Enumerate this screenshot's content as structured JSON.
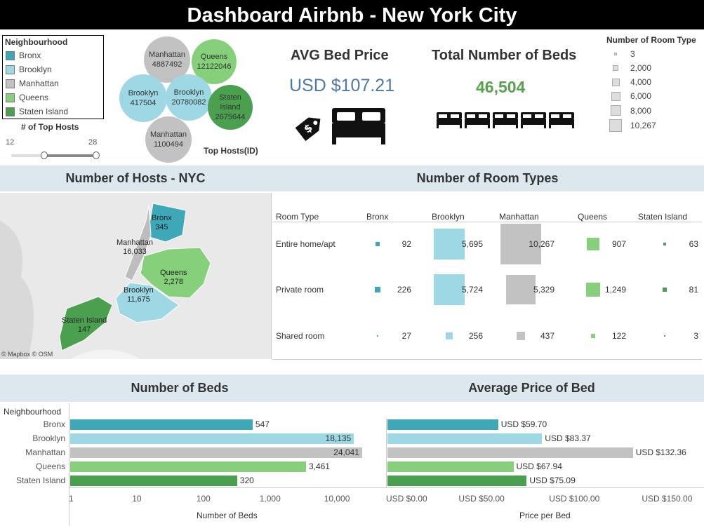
{
  "title": "Dashboard Airbnb - New York City",
  "colors": {
    "Bronx": "#3ea8b8",
    "Brooklyn": "#9dd8e4",
    "Manhattan": "#c2c2c2",
    "Queens": "#86d07b",
    "Staten Island": "#4ba04f",
    "header_bg": "#000000",
    "section_bg": "#dde8ee",
    "price_blue": "#4e79a7",
    "beds_green": "#59a14f"
  },
  "legend": {
    "title": "Neighbourhood",
    "items": [
      "Bronx",
      "Brooklyn",
      "Manhattan",
      "Queens",
      "Staten Island"
    ]
  },
  "slider": {
    "title": "# of Top Hosts",
    "min": "12",
    "max": "28",
    "low_fraction": 0.38,
    "high_fraction": 1.0
  },
  "top_hosts": {
    "label": "Top Hosts(ID)",
    "bubbles": [
      {
        "name": "Manhattan",
        "id": "4887492",
        "color_key": "Manhattan"
      },
      {
        "name": "Queens",
        "id": "12122046",
        "color_key": "Queens"
      },
      {
        "name": "Brooklyn",
        "id": "417504",
        "color_key": "Brooklyn"
      },
      {
        "name": "Brooklyn",
        "id": "20780082",
        "color_key": "Brooklyn"
      },
      {
        "name": "Staten Island",
        "id": "2675644",
        "color_key": "Staten Island"
      },
      {
        "name": "Manhattan",
        "id": "1100494",
        "color_key": "Manhattan"
      }
    ]
  },
  "kpi": {
    "avg_price_title": "AVG Bed Price",
    "avg_price_value": "USD $107.21",
    "total_beds_title": "Total Number of Beds",
    "total_beds_value": "46,504",
    "icons": [
      "price-tag-icon",
      "bed-icon"
    ]
  },
  "size_legend": {
    "title": "Number of Room Type",
    "values": [
      "3",
      "2,000",
      "4,000",
      "6,000",
      "8,000",
      "10,267"
    ]
  },
  "sections": {
    "hosts_map": "Number of Hosts - NYC",
    "room_types": "Number of Room Types",
    "beds": "Number of Beds",
    "avg_price": "Average Price of Bed"
  },
  "map": {
    "credit": "© Mapbox © OSM",
    "labels": [
      {
        "name": "Bronx",
        "value": "345"
      },
      {
        "name": "Manhattan",
        "value": "16,033"
      },
      {
        "name": "Queens",
        "value": "2,278"
      },
      {
        "name": "Brooklyn",
        "value": "11,675"
      },
      {
        "name": "Staten Island",
        "value": "147"
      }
    ]
  },
  "room_types": {
    "header_label": "Room Type",
    "columns": [
      "Bronx",
      "Brooklyn",
      "Manhattan",
      "Queens",
      "Staten Island"
    ],
    "rows": [
      {
        "label": "Entire home/apt",
        "values": [
          92,
          5695,
          10267,
          907,
          63
        ],
        "display": [
          "92",
          "5,695",
          "10,267",
          "907",
          "63"
        ]
      },
      {
        "label": "Private room",
        "values": [
          226,
          5724,
          5329,
          1249,
          81
        ],
        "display": [
          "226",
          "5,724",
          "5,329",
          "1,249",
          "81"
        ]
      },
      {
        "label": "Shared room",
        "values": [
          27,
          256,
          437,
          122,
          3
        ],
        "display": [
          "27",
          "256",
          "437",
          "122",
          "3"
        ]
      }
    ]
  },
  "chart_data": [
    {
      "type": "bar",
      "title": "Number of Beds",
      "orientation": "horizontal",
      "scale": "log",
      "categories_header": "Neighbourhood",
      "categories": [
        "Bronx",
        "Brooklyn",
        "Manhattan",
        "Queens",
        "Staten Island"
      ],
      "values": [
        547,
        18135,
        24041,
        3461,
        320
      ],
      "value_labels": [
        "547",
        "18,135",
        "24,041",
        "3,461",
        "320"
      ],
      "xlabel": "Number of Beds",
      "xticks": [
        "1",
        "10",
        "100",
        "1,000",
        "10,000"
      ],
      "xlim": [
        1,
        30000
      ]
    },
    {
      "type": "bar",
      "title": "Average Price of Bed",
      "orientation": "horizontal",
      "categories": [
        "Bronx",
        "Brooklyn",
        "Manhattan",
        "Queens",
        "Staten Island"
      ],
      "values": [
        59.7,
        83.37,
        132.36,
        67.94,
        75.09
      ],
      "value_labels": [
        "USD $59.70",
        "USD $83.37",
        "USD $132.36",
        "USD $67.94",
        "USD $75.09"
      ],
      "xlabel": "Price per Bed",
      "xticks": [
        "USD $0.00",
        "USD $50.00",
        "USD $100.00",
        "USD $150.00"
      ],
      "xlim": [
        0,
        165
      ]
    }
  ]
}
